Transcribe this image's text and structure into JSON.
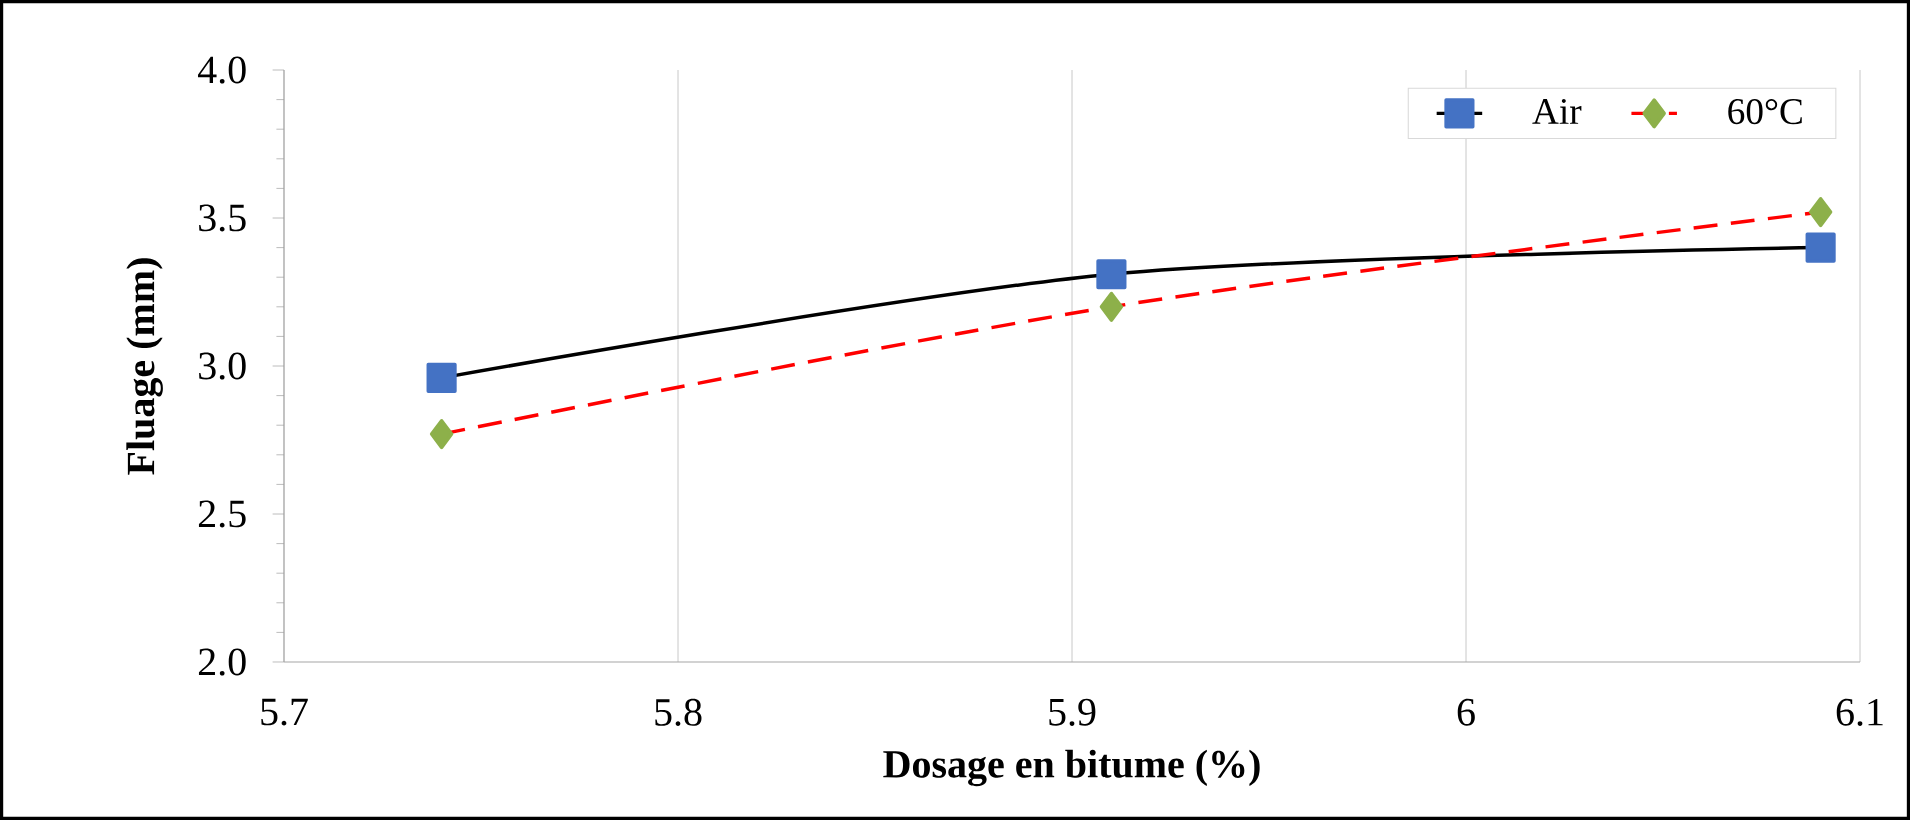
{
  "chart_data": {
    "type": "line",
    "xlabel": "Dosage en bitume (%)",
    "ylabel": "Fluage  (mm)",
    "x": [
      5.74,
      5.91,
      6.09
    ],
    "series": [
      {
        "name": "Air",
        "color": "#4472c4",
        "values": [
          2.96,
          3.31,
          3.4
        ],
        "marker": "square",
        "line_style": "solid"
      },
      {
        "name": "60°C",
        "color": "#8db04a",
        "values": [
          2.77,
          3.2,
          3.52
        ],
        "marker": "diamond",
        "line_style": "dashed"
      }
    ],
    "xlim": [
      5.7,
      6.1
    ],
    "xticks": [
      {
        "value": 5.7,
        "label": "5.7"
      },
      {
        "value": 5.8,
        "label": "5.8"
      },
      {
        "value": 5.9,
        "label": "5.9"
      },
      {
        "value": 6,
        "label": "6"
      },
      {
        "value": 6.1,
        "label": "6.1"
      }
    ],
    "ylim": [
      2,
      4
    ],
    "yticks": [
      {
        "value": 2,
        "label": "2.0"
      },
      {
        "value": 2.5,
        "label": "2.5"
      },
      {
        "value": 3,
        "label": "3.0"
      },
      {
        "value": 3.5,
        "label": "3.5"
      },
      {
        "value": 4,
        "label": "4.0"
      }
    ],
    "grid": "x",
    "legend": "top right"
  }
}
